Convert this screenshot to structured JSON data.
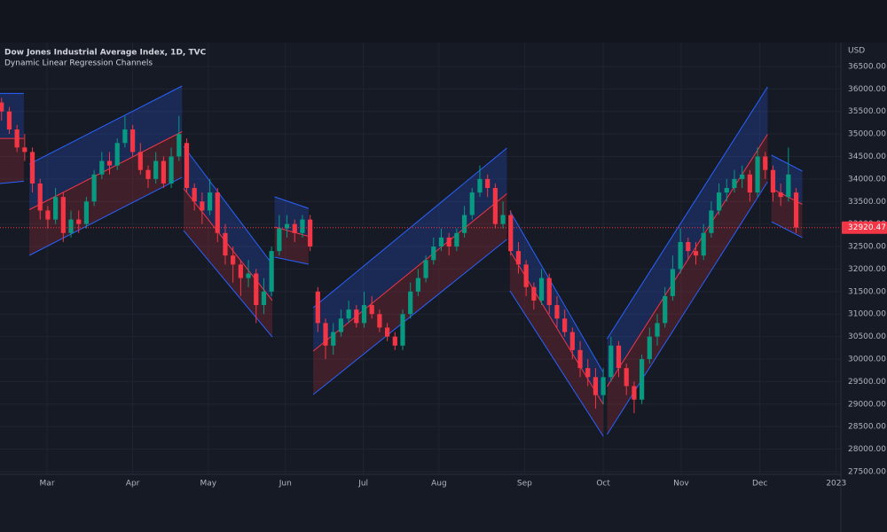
{
  "chart_data": {
    "type": "candlestick",
    "title": "Dow Jones Industrial Average Index, 1D, TVC",
    "subtitle": "Dynamic Linear Regression Channels",
    "currency": "USD",
    "last_price": 32920.47,
    "up_color": "#089981",
    "down_color": "#f23645",
    "channel_colors": {
      "upper_fill": "rgba(41,98,255,0.22)",
      "lower_fill": "rgba(242,54,69,0.18)",
      "edge": "#2962ff",
      "mid": "#f23645"
    },
    "grid": true,
    "xlim": [
      -0.2,
      108.8
    ],
    "ylim": [
      27440,
      37030
    ],
    "xticks": [
      {
        "value": 5.9,
        "label": "Mar"
      },
      {
        "value": 17.0,
        "label": "Apr"
      },
      {
        "value": 26.8,
        "label": "May"
      },
      {
        "value": 36.8,
        "label": "Jun"
      },
      {
        "value": 46.9,
        "label": "Jul"
      },
      {
        "value": 56.7,
        "label": "Aug"
      },
      {
        "value": 67.8,
        "label": "Sep"
      },
      {
        "value": 78.0,
        "label": "Oct"
      },
      {
        "value": 88.1,
        "label": "Nov"
      },
      {
        "value": 98.3,
        "label": "Dec"
      },
      {
        "value": 108.2,
        "label": "2023"
      }
    ],
    "yticks": [
      {
        "value": 27500,
        "label": "27500.00"
      },
      {
        "value": 28000,
        "label": "28000.00"
      },
      {
        "value": 28500,
        "label": "28500.00"
      },
      {
        "value": 29000,
        "label": "29000.00"
      },
      {
        "value": 29500,
        "label": "29500.00"
      },
      {
        "value": 30000,
        "label": "30000.00"
      },
      {
        "value": 30500,
        "label": "30500.00"
      },
      {
        "value": 31000,
        "label": "31000.00"
      },
      {
        "value": 31500,
        "label": "31500.00"
      },
      {
        "value": 32000,
        "label": "32000.00"
      },
      {
        "value": 32500,
        "label": "32500.00"
      },
      {
        "value": 33000,
        "label": "33000.00"
      },
      {
        "value": 33500,
        "label": "33500.00"
      },
      {
        "value": 34000,
        "label": "34000.00"
      },
      {
        "value": 34500,
        "label": "34500.00"
      },
      {
        "value": 35000,
        "label": "35000.00"
      },
      {
        "value": 35500,
        "label": "35500.00"
      },
      {
        "value": 36000,
        "label": "36000.00"
      },
      {
        "value": 36500,
        "label": "36500.00"
      }
    ],
    "ohlc": [
      [
        35700,
        35800,
        35300,
        35500
      ],
      [
        35500,
        35600,
        35000,
        35100
      ],
      [
        35100,
        35200,
        34600,
        34700
      ],
      [
        34700,
        35000,
        34400,
        34600
      ],
      [
        34600,
        34700,
        33700,
        33900
      ],
      [
        33900,
        34000,
        33100,
        33300
      ],
      [
        33300,
        33400,
        32900,
        33100
      ],
      [
        33100,
        33800,
        33000,
        33600
      ],
      [
        33600,
        33700,
        32600,
        32800
      ],
      [
        32800,
        33300,
        32700,
        33100
      ],
      [
        33100,
        33300,
        32800,
        33000
      ],
      [
        33000,
        33600,
        32900,
        33500
      ],
      [
        33500,
        34200,
        33400,
        34100
      ],
      [
        34100,
        34600,
        34000,
        34400
      ],
      [
        34400,
        34600,
        34100,
        34300
      ],
      [
        34300,
        34900,
        34200,
        34800
      ],
      [
        34800,
        35400,
        34700,
        35100
      ],
      [
        35100,
        35200,
        34500,
        34600
      ],
      [
        34600,
        34800,
        34100,
        34200
      ],
      [
        34200,
        34300,
        33800,
        34000
      ],
      [
        34000,
        34600,
        33900,
        34400
      ],
      [
        34400,
        34500,
        33800,
        33900
      ],
      [
        33900,
        34700,
        33800,
        34500
      ],
      [
        34500,
        35400,
        34400,
        35000
      ],
      [
        34800,
        34900,
        33700,
        33800
      ],
      [
        33800,
        33900,
        33300,
        33500
      ],
      [
        33500,
        33700,
        33000,
        33300
      ],
      [
        33300,
        34000,
        33200,
        33700
      ],
      [
        33700,
        33800,
        32600,
        32800
      ],
      [
        32800,
        33000,
        32100,
        32300
      ],
      [
        32300,
        32500,
        31700,
        32100
      ],
      [
        32100,
        32200,
        31400,
        31800
      ],
      [
        31800,
        32200,
        31600,
        31900
      ],
      [
        31900,
        32000,
        30800,
        31200
      ],
      [
        31200,
        31800,
        31000,
        31500
      ],
      [
        31500,
        32500,
        31400,
        32400
      ],
      [
        32400,
        33200,
        32300,
        32900
      ],
      [
        32900,
        33200,
        32700,
        33000
      ],
      [
        33000,
        33100,
        32600,
        32800
      ],
      [
        32800,
        33200,
        32700,
        33100
      ],
      [
        33100,
        33200,
        32400,
        32500
      ],
      [
        31500,
        31600,
        30600,
        30800
      ],
      [
        30800,
        30900,
        30000,
        30300
      ],
      [
        30300,
        30800,
        30100,
        30600
      ],
      [
        30600,
        31100,
        30500,
        30900
      ],
      [
        30900,
        31300,
        30800,
        31100
      ],
      [
        31100,
        31200,
        30700,
        30800
      ],
      [
        30800,
        31500,
        30700,
        31200
      ],
      [
        31200,
        31400,
        30900,
        31000
      ],
      [
        31000,
        31100,
        30600,
        30700
      ],
      [
        30700,
        30800,
        30400,
        30500
      ],
      [
        30500,
        30600,
        30200,
        30300
      ],
      [
        30300,
        31100,
        30200,
        31000
      ],
      [
        31000,
        31700,
        30900,
        31500
      ],
      [
        31500,
        32000,
        31400,
        31800
      ],
      [
        31800,
        32300,
        31700,
        32200
      ],
      [
        32200,
        32700,
        32100,
        32500
      ],
      [
        32500,
        32900,
        32400,
        32700
      ],
      [
        32700,
        32800,
        32300,
        32500
      ],
      [
        32500,
        32900,
        32400,
        32800
      ],
      [
        32800,
        33400,
        32700,
        33200
      ],
      [
        33200,
        33800,
        33100,
        33700
      ],
      [
        33700,
        34300,
        33600,
        34000
      ],
      [
        34000,
        34100,
        33600,
        33800
      ],
      [
        33800,
        33900,
        32900,
        33000
      ],
      [
        33000,
        33500,
        32900,
        33200
      ],
      [
        33200,
        33300,
        32300,
        32400
      ],
      [
        32400,
        32600,
        31900,
        32100
      ],
      [
        32100,
        32200,
        31400,
        31600
      ],
      [
        31600,
        31700,
        31100,
        31300
      ],
      [
        31300,
        32000,
        31200,
        31800
      ],
      [
        31800,
        31900,
        31000,
        31200
      ],
      [
        31200,
        31400,
        30700,
        30900
      ],
      [
        30900,
        31100,
        30500,
        30600
      ],
      [
        30600,
        30700,
        30000,
        30200
      ],
      [
        30200,
        30400,
        29600,
        29800
      ],
      [
        29800,
        30000,
        29400,
        29600
      ],
      [
        29600,
        29800,
        28900,
        29200
      ],
      [
        29200,
        29800,
        29000,
        29600
      ],
      [
        29600,
        30500,
        29500,
        30300
      ],
      [
        30300,
        30400,
        29600,
        29800
      ],
      [
        29800,
        29900,
        29200,
        29400
      ],
      [
        29400,
        29500,
        28800,
        29100
      ],
      [
        29100,
        30100,
        29000,
        30000
      ],
      [
        30000,
        30700,
        29900,
        30500
      ],
      [
        30500,
        31000,
        30300,
        30800
      ],
      [
        30800,
        31600,
        30700,
        31400
      ],
      [
        31400,
        32300,
        31300,
        32000
      ],
      [
        32000,
        32900,
        31900,
        32600
      ],
      [
        32600,
        32700,
        32200,
        32400
      ],
      [
        32400,
        32600,
        32100,
        32300
      ],
      [
        32300,
        33000,
        32200,
        32800
      ],
      [
        32800,
        33500,
        32700,
        33300
      ],
      [
        33300,
        33900,
        33200,
        33700
      ],
      [
        33700,
        34000,
        33500,
        33800
      ],
      [
        33800,
        34200,
        33700,
        34000
      ],
      [
        34000,
        34300,
        33800,
        34100
      ],
      [
        34100,
        34200,
        33500,
        33700
      ],
      [
        33700,
        34700,
        33600,
        34500
      ],
      [
        34500,
        34600,
        34000,
        34200
      ],
      [
        34200,
        34300,
        33500,
        33700
      ],
      [
        33700,
        33900,
        33400,
        33600
      ],
      [
        33600,
        34700,
        33500,
        34100
      ],
      [
        33700,
        33800,
        32800,
        32920.47
      ]
    ],
    "channels": [
      {
        "x": [
          -0.2,
          2.9
        ],
        "upper": [
          35900,
          35900
        ],
        "mid": [
          34900,
          34900
        ],
        "lower": [
          33900,
          33950
        ]
      },
      {
        "x": [
          3.6,
          23.4
        ],
        "upper": [
          34332,
          36065
        ],
        "mid": [
          33318,
          35051
        ],
        "lower": [
          32304,
          34037
        ]
      },
      {
        "x": [
          23.6,
          35.1
        ],
        "upper": [
          34726,
          32107
        ],
        "mid": [
          33790,
          31300
        ],
        "lower": [
          32855,
          30492
        ]
      },
      {
        "x": [
          35.4,
          39.8
        ],
        "upper": [
          33603,
          33347
        ],
        "mid": [
          32934,
          32727
        ],
        "lower": [
          32264,
          32107
        ]
      },
      {
        "x": [
          40.4,
          65.5
        ],
        "upper": [
          31142,
          34687
        ],
        "mid": [
          30177,
          33672
        ],
        "lower": [
          29212,
          32658
        ]
      },
      {
        "x": [
          65.9,
          78.0
        ],
        "upper": [
          33289,
          29705
        ],
        "mid": [
          32402,
          28996
        ],
        "lower": [
          31516,
          28287
        ]
      },
      {
        "x": [
          78.5,
          99.3
        ],
        "upper": [
          30453,
          36045
        ],
        "mid": [
          29390,
          34992
        ],
        "lower": [
          28326,
          33938
        ]
      },
      {
        "x": [
          99.8,
          103.8
        ],
        "upper": [
          34529,
          34175
        ],
        "mid": [
          33790,
          33437
        ],
        "lower": [
          33052,
          32698
        ]
      }
    ]
  }
}
